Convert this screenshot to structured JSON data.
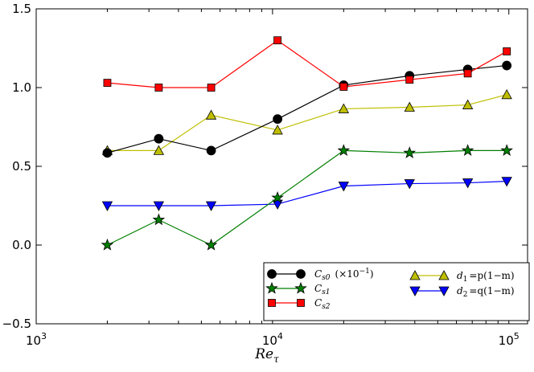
{
  "chart_data": {
    "type": "line",
    "title": "",
    "xlabel": "Re_τ",
    "ylabel": "",
    "xscale": "log",
    "xlim": [
      1000,
      120000
    ],
    "ylim": [
      -0.5,
      1.5
    ],
    "grid": false,
    "legend_position": "lower-right",
    "x_ticks": [
      {
        "value": 1000,
        "base": "10",
        "exp": "3"
      },
      {
        "value": 10000,
        "base": "10",
        "exp": "4"
      },
      {
        "value": 100000,
        "base": "10",
        "exp": "5"
      }
    ],
    "y_ticks": [
      {
        "value": -0.5,
        "label": "−0.5"
      },
      {
        "value": 0.0,
        "label": "0.0"
      },
      {
        "value": 0.5,
        "label": "0.5"
      },
      {
        "value": 1.0,
        "label": "1.0"
      },
      {
        "value": 1.5,
        "label": "1.5"
      }
    ],
    "x": [
      2000,
      3300,
      5500,
      10500,
      20000,
      38000,
      67000,
      98000
    ],
    "series": [
      {
        "name": "Cs0 (×10^-1)",
        "color": "#000000",
        "marker": "circle",
        "values": [
          0.585,
          0.675,
          0.6,
          0.8,
          1.015,
          1.075,
          1.115,
          1.14
        ]
      },
      {
        "name": "Cs1",
        "color": "#007f00",
        "marker": "star",
        "values": [
          0.0,
          0.16,
          0.0,
          0.3,
          0.6,
          0.585,
          0.6,
          0.6
        ]
      },
      {
        "name": "Cs2",
        "color": "#ff0000",
        "marker": "square",
        "values": [
          1.03,
          1.0,
          1.0,
          1.3,
          1.005,
          1.05,
          1.09,
          1.23
        ]
      },
      {
        "name": "d1 = p(1−m)",
        "color": "#bfbf00",
        "marker": "triangle-up",
        "values": [
          0.6,
          0.6,
          0.825,
          0.73,
          0.865,
          0.875,
          0.89,
          0.955
        ]
      },
      {
        "name": "d2 = q(1−m)",
        "color": "#0000ff",
        "marker": "triangle-down",
        "values": [
          0.25,
          0.25,
          0.25,
          0.26,
          0.375,
          0.39,
          0.395,
          0.405
        ]
      }
    ],
    "legend": {
      "cs0_main": "C",
      "cs0_sub": "s0",
      "cs0_factor": "(×10",
      "cs0_exp": "−1",
      "cs0_close": ")",
      "cs1_main": "C",
      "cs1_sub": "s1",
      "cs2_main": "C",
      "cs2_sub": "s2",
      "d1_main": "d",
      "d1_sub": "1",
      "d1_rest": "=p(1−m)",
      "d2_main": "d",
      "d2_sub": "2",
      "d2_rest": "=q(1−m)"
    },
    "xlabel_main": "Re",
    "xlabel_sub": "τ"
  }
}
